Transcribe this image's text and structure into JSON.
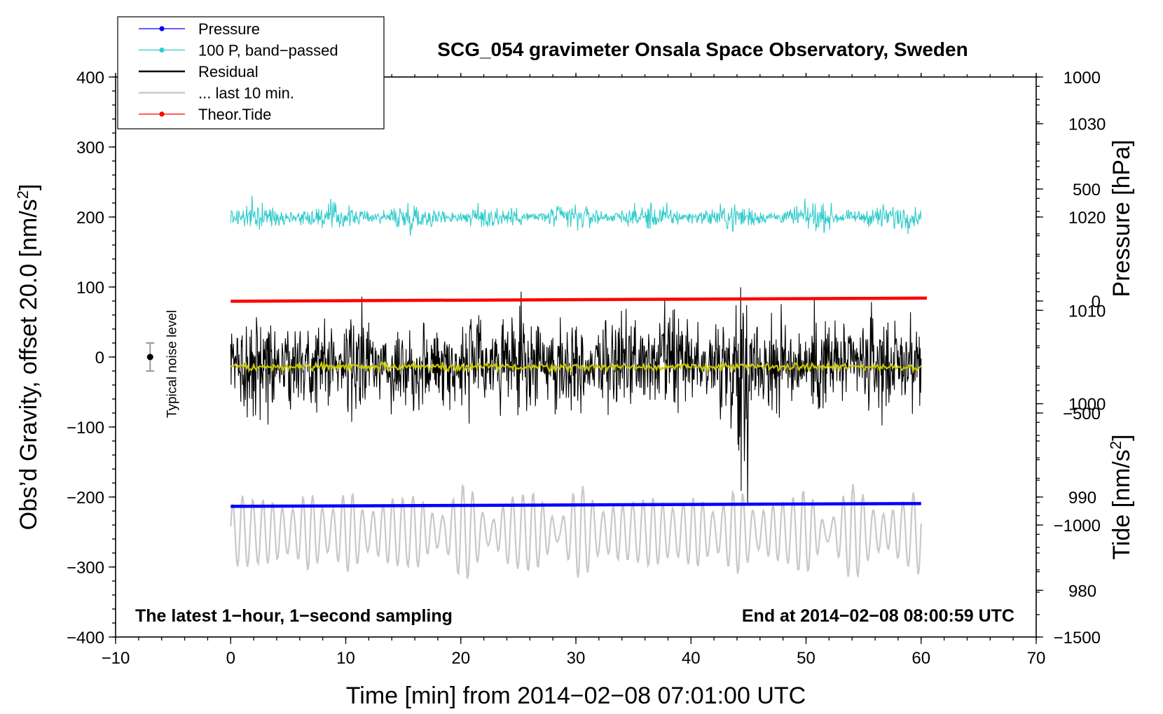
{
  "chart_data": {
    "type": "line",
    "title": "SCG_054 gravimeter Onsala Space Observatory, Sweden",
    "xlabel": "Time [min] from 2014−02−08 07:01:00 UTC",
    "ylabel_left_main": "Obs’d Gravity, offset 20.0 [nm/s",
    "ylabel_left_sup": "2",
    "ylabel_left_end": "]",
    "ylabel_right_pressure": "Pressure [hPa]",
    "ylabel_right_tide_main": "Tide [nm/s",
    "ylabel_right_tide_sup": "2",
    "ylabel_right_tide_end": "]",
    "xlim": [
      -10,
      70
    ],
    "ylim": [
      -400,
      400
    ],
    "pressure_lim": [
      975,
      1035
    ],
    "tide_lim": [
      -1500,
      1000
    ],
    "x_ticks": [
      -10,
      0,
      10,
      20,
      30,
      40,
      50,
      60,
      70
    ],
    "x_tick_labels": [
      "−10",
      "0",
      "10",
      "20",
      "30",
      "40",
      "50",
      "60",
      "70"
    ],
    "y_ticks": [
      400,
      300,
      200,
      100,
      0,
      -100,
      -200,
      -300,
      -400
    ],
    "y_tick_labels": [
      "400",
      "300",
      "200",
      "100",
      "0",
      "−100",
      "−200",
      "−300",
      "−400"
    ],
    "pressure_ticks": [
      1030,
      1020,
      1010,
      1000,
      990,
      980
    ],
    "pressure_tick_labels": [
      "1030",
      "1020",
      "1010",
      "1000",
      "990",
      "980"
    ],
    "tide_ticks": [
      1000,
      500,
      0,
      -500,
      -1000,
      -1500
    ],
    "tide_tick_labels": [
      "1000",
      "500",
      "0",
      "−500",
      "−1000",
      "−1500"
    ],
    "legend": [
      {
        "label": "Pressure",
        "color": "#0000ff",
        "marker": true
      },
      {
        "label": "100 P, band−passed",
        "color": "#33cccc",
        "marker": true
      },
      {
        "label": "Residual",
        "color": "#000000",
        "marker": false
      },
      {
        "label": "... last 10 min.",
        "color": "#c8c8c8",
        "marker": false
      },
      {
        "label": "Theor.Tide",
        "color": "#ff0000",
        "marker": true
      }
    ],
    "series": [
      {
        "name": "Pressure",
        "axis": "pressure",
        "color": "#0000ff",
        "x": [
          0,
          60
        ],
        "values": [
          989.0,
          989.3
        ]
      },
      {
        "name": "100 P, band-passed",
        "axis": "gravity",
        "color": "#33cccc",
        "x_range": [
          0,
          60
        ],
        "baseline": 200,
        "amplitude": 18
      },
      {
        "name": "Residual",
        "axis": "gravity",
        "color": "#000000",
        "x_range": [
          0,
          60
        ],
        "baseline": -10,
        "amplitude": 80
      },
      {
        "name": "Residual (smoothed)",
        "axis": "gravity",
        "color": "#c8c800",
        "x_range": [
          0,
          60
        ],
        "baseline": -14
      },
      {
        "name": "... last 10 min.",
        "axis": "gravity",
        "color": "#c8c8c8",
        "x_range": [
          0,
          60
        ],
        "baseline": -250,
        "amplitude": 50
      },
      {
        "name": "Theor.Tide",
        "axis": "tide",
        "color": "#ff0000",
        "x": [
          0,
          60.5
        ],
        "values": [
          -1,
          13
        ]
      }
    ],
    "noise_marker": {
      "label": "Typical noise level",
      "x": -7,
      "value": 0,
      "error": 20
    },
    "annotations": {
      "left": "The latest 1−hour, 1−second sampling",
      "right": "End at 2014−02−08 08:00:59 UTC"
    }
  },
  "colors": {
    "pressure": "#0000ff",
    "bandpassed": "#33cccc",
    "residual": "#000000",
    "smoothed": "#c8c800",
    "last10": "#c8c8c8",
    "tide": "#ff0000",
    "noise_bar": "#9a9a9a"
  }
}
